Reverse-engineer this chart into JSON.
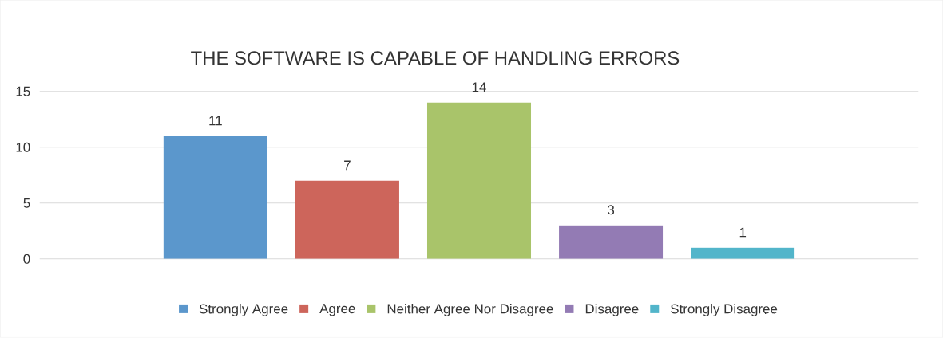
{
  "chart_data": {
    "type": "bar",
    "title": "THE SOFTWARE IS CAPABLE OF HANDLING ERRORS",
    "categories": [
      null
    ],
    "series": [
      {
        "name": "Strongly Agree",
        "color": "#5b97cc",
        "values": [
          11
        ]
      },
      {
        "name": "Agree",
        "color": "#cd655b",
        "values": [
          7
        ]
      },
      {
        "name": "Neither Agree Nor Disagree",
        "color": "#a9c46a",
        "values": [
          14
        ]
      },
      {
        "name": "Disagree",
        "color": "#937bb4",
        "values": [
          3
        ]
      },
      {
        "name": "Strongly Disagree",
        "color": "#52b5ca",
        "values": [
          1
        ]
      }
    ],
    "ylim": [
      0,
      15
    ],
    "yticks": [
      0,
      5,
      10,
      15
    ],
    "grid": "y",
    "legend": "bottom",
    "data_labels": true
  }
}
